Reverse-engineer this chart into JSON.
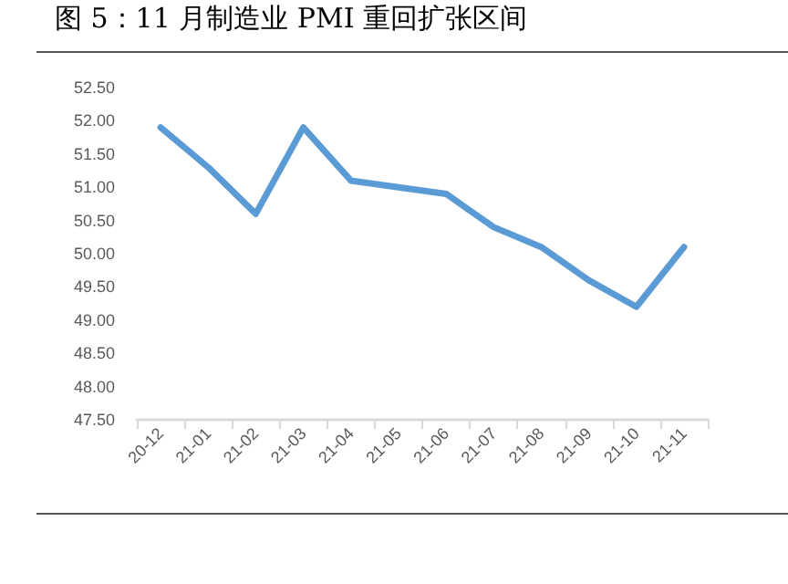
{
  "chart_data": {
    "type": "line",
    "title": "图 5：11 月制造业 PMI 重回扩张区间",
    "categories": [
      "20-12",
      "21-01",
      "21-02",
      "21-03",
      "21-04",
      "21-05",
      "21-06",
      "21-07",
      "21-08",
      "21-09",
      "21-10",
      "21-11"
    ],
    "series": [
      {
        "color": "#5b9bd5",
        "values": [
          51.9,
          51.3,
          50.6,
          51.9,
          51.1,
          51.0,
          50.9,
          50.4,
          50.1,
          49.6,
          49.2,
          50.1
        ]
      }
    ],
    "ylim": [
      47.5,
      52.5
    ],
    "yticks": [
      {
        "value": 47.5,
        "label": "47.50"
      },
      {
        "value": 48,
        "label": "48.00"
      },
      {
        "value": 48.5,
        "label": "48.50"
      },
      {
        "value": 49,
        "label": "49.00"
      },
      {
        "value": 49.5,
        "label": "49.50"
      },
      {
        "value": 50,
        "label": "50.00"
      },
      {
        "value": 50.5,
        "label": "50.50"
      },
      {
        "value": 51,
        "label": "51.00"
      },
      {
        "value": 51.5,
        "label": "51.50"
      },
      {
        "value": 52,
        "label": "52.00"
      },
      {
        "value": 52.5,
        "label": "52.50"
      }
    ],
    "grid": false,
    "marker": "none",
    "line_style": "solid"
  }
}
